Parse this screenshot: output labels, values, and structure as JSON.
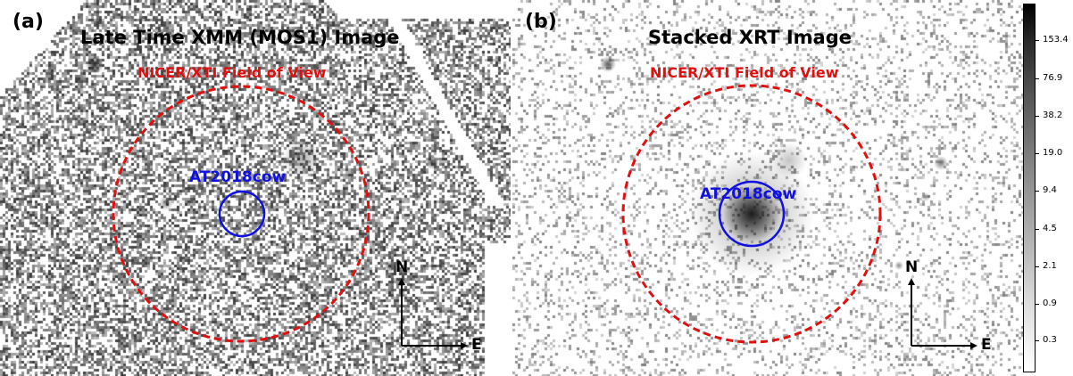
{
  "panels": [
    {
      "id": "a",
      "letter": "(a)",
      "title": "Late Time XMM (MOS1) Image",
      "fov_label": "NICER/XTI Field of View",
      "source_label": "AT2018cow",
      "north": "N",
      "east": "E"
    },
    {
      "id": "b",
      "letter": "(b)",
      "title": "Stacked XRT Image",
      "fov_label": "NICER/XTI Field of View",
      "source_label": "AT2018cow",
      "north": "N",
      "east": "E"
    }
  ],
  "colorbar": {
    "tick_labels": [
      "153.4",
      "76.9",
      "38.2",
      "19.0",
      "9.4",
      "4.5",
      "2.1",
      "0.9",
      "0.3"
    ]
  },
  "colors": {
    "fov_circle": "#e01010",
    "source_circle": "#1010e0"
  }
}
